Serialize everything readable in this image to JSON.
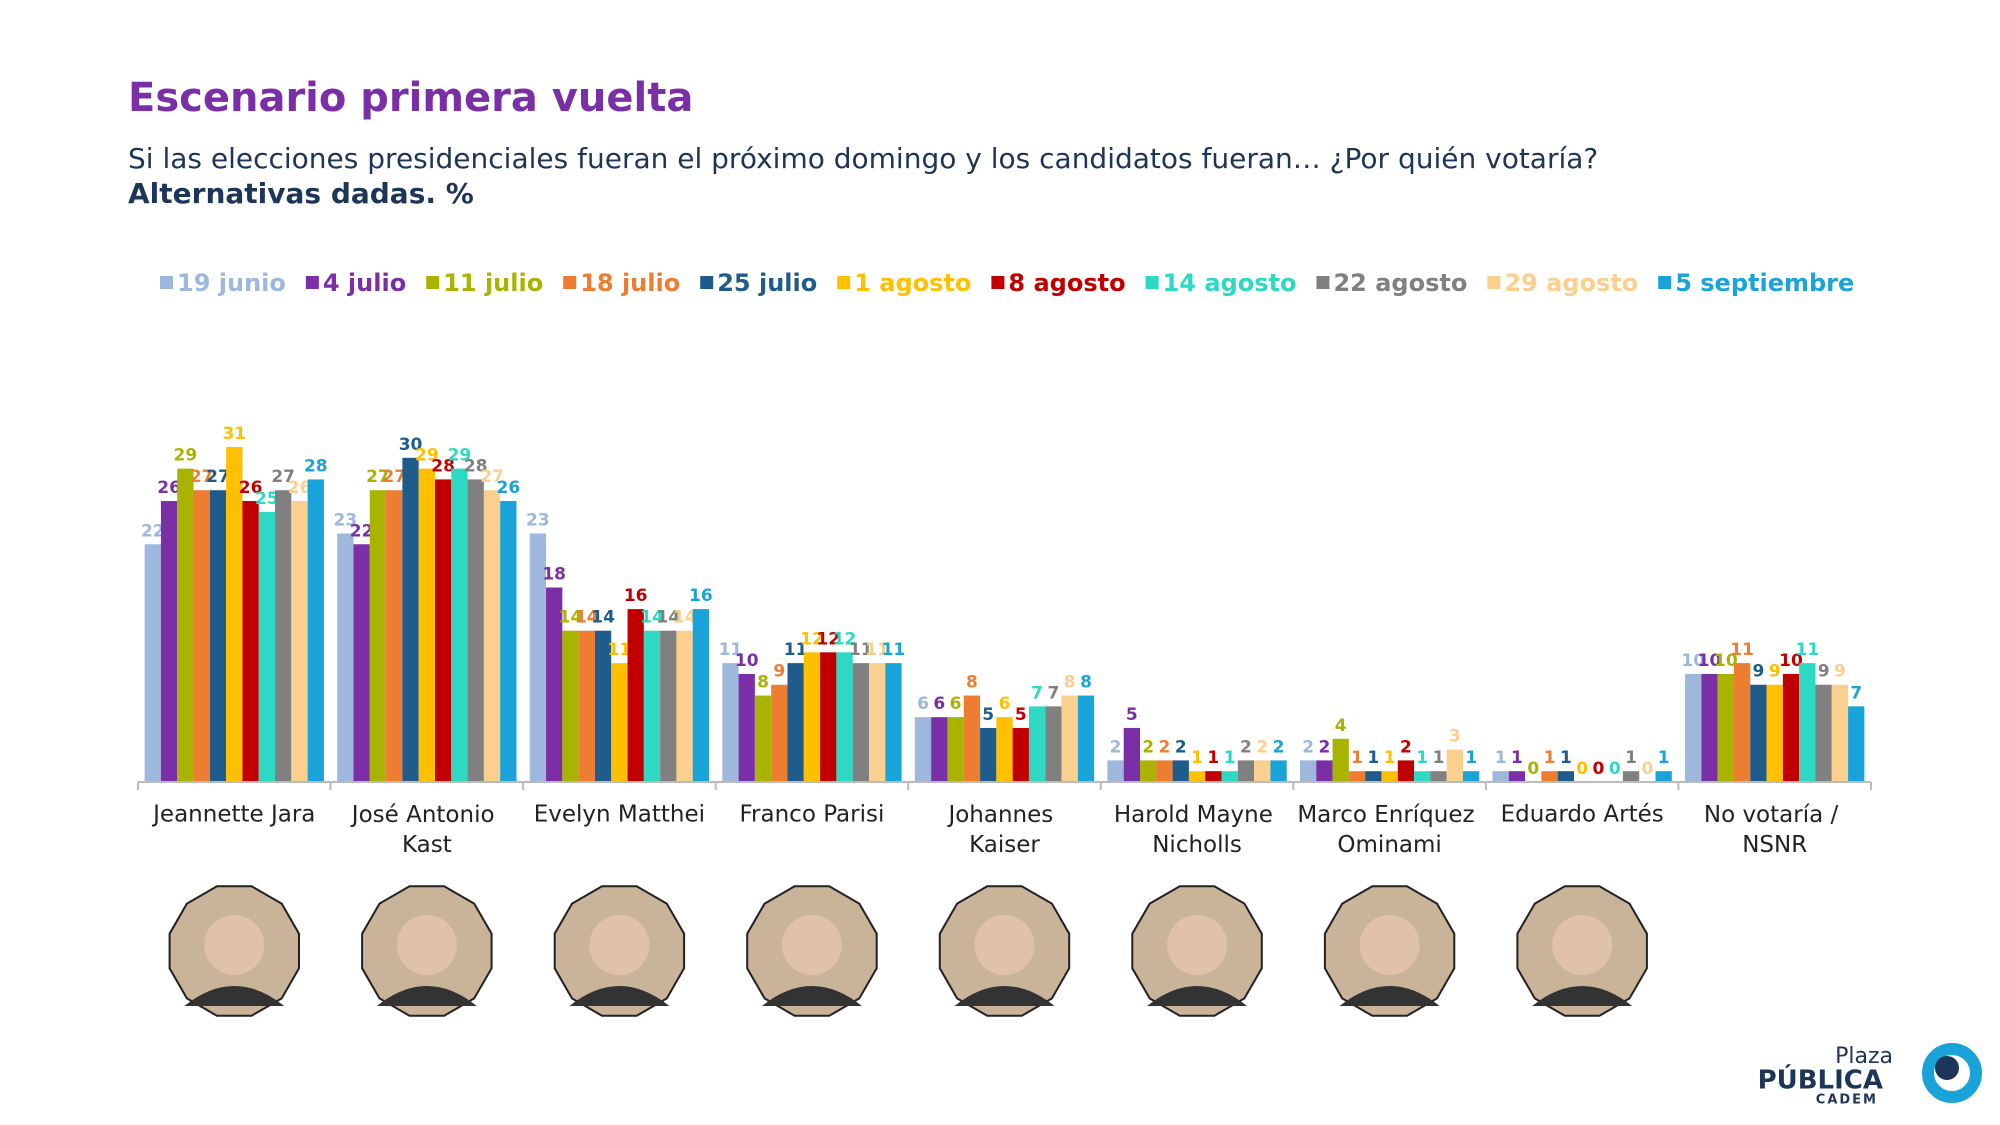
{
  "chart_data": {
    "type": "bar",
    "title": "Escenario primera vuelta",
    "subtitle": "Si las elecciones presidenciales fueran el próximo domingo y los candidatos fueran… ¿Por quién votaría?",
    "note": "Alternativas dadas. %",
    "categories": [
      "Jeannette Jara",
      "José Antonio Kast",
      "Evelyn Matthei",
      "Franco Parisi",
      "Johannes Kaiser",
      "Harold Mayne Nicholls",
      "Marco Enríquez Ominami",
      "Eduardo Artés",
      "No votaría / NSNR"
    ],
    "series": [
      {
        "name": "19 junio",
        "color": "#9db7dd",
        "values": [
          22,
          23,
          23,
          11,
          6,
          2,
          2,
          1,
          10
        ]
      },
      {
        "name": "4 julio",
        "color": "#7b2fa6",
        "values": [
          26,
          22,
          18,
          10,
          6,
          5,
          2,
          1,
          10
        ]
      },
      {
        "name": "11 julio",
        "color": "#a8b400",
        "values": [
          29,
          27,
          14,
          8,
          6,
          2,
          4,
          0,
          10
        ]
      },
      {
        "name": "18 julio",
        "color": "#ed7d31",
        "values": [
          27,
          27,
          14,
          9,
          8,
          2,
          1,
          1,
          11
        ]
      },
      {
        "name": "25 julio",
        "color": "#1f5c8b",
        "values": [
          27,
          30,
          14,
          11,
          5,
          2,
          1,
          1,
          9
        ]
      },
      {
        "name": "1 agosto",
        "color": "#ffc000",
        "values": [
          31,
          29,
          11,
          12,
          6,
          1,
          1,
          0,
          9
        ]
      },
      {
        "name": "8 agosto",
        "color": "#c00000",
        "values": [
          26,
          28,
          16,
          12,
          5,
          1,
          2,
          0,
          10
        ]
      },
      {
        "name": "14 agosto",
        "color": "#2ed9c3",
        "values": [
          25,
          29,
          14,
          12,
          7,
          1,
          1,
          0,
          11
        ]
      },
      {
        "name": "22 agosto",
        "color": "#808080",
        "values": [
          27,
          28,
          14,
          11,
          7,
          2,
          1,
          1,
          9
        ]
      },
      {
        "name": "29 agosto",
        "color": "#fbcf8d",
        "values": [
          26,
          27,
          14,
          11,
          8,
          2,
          3,
          0,
          9
        ]
      },
      {
        "name": "5 septiembre",
        "color": "#1aa3d9",
        "values": [
          28,
          26,
          16,
          11,
          8,
          2,
          1,
          1,
          7
        ]
      }
    ]
  },
  "logo": {
    "line1": "Plaza",
    "line2": "PÚBLICA",
    "line3": "CADEM"
  }
}
